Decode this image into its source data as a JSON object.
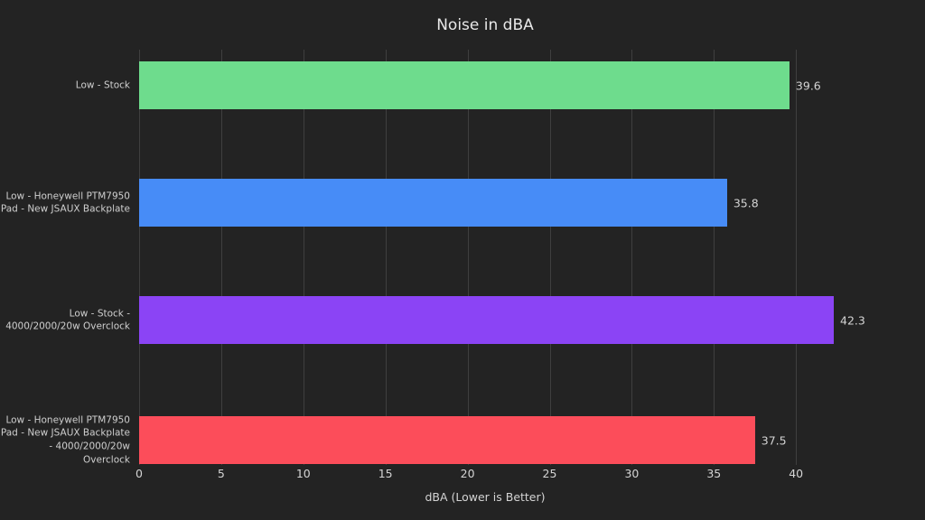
{
  "chart_data": {
    "type": "bar",
    "orientation": "horizontal",
    "title": "Noise in dBA",
    "xlabel": "dBA (Lower is Better)",
    "categories": [
      "Low - Stock",
      "Low - Honeywell PTM7950 Pad - New JSAUX Backplate",
      "Low - Stock - 4000/2000/20w Overclock",
      "Low - Honeywell PTM7950 Pad - New JSAUX Backplate - 4000/2000/20w Overclock"
    ],
    "values": [
      39.6,
      35.8,
      42.3,
      37.5
    ],
    "value_labels": [
      "39.6",
      "35.8",
      "42.3",
      "37.5"
    ],
    "bar_colors": [
      "#6edc8d",
      "#478cf7",
      "#8b44f5",
      "#fc4d5a"
    ],
    "xticks": [
      "0",
      "5",
      "10",
      "15",
      "20",
      "25",
      "30",
      "35",
      "40"
    ],
    "xtick_values": [
      0,
      5,
      10,
      15,
      20,
      25,
      30,
      35,
      40
    ],
    "xlim": [
      0,
      47.3
    ],
    "grid": true,
    "legend": false,
    "colors": {
      "background": "#232323",
      "gridline": "#3f3f3f",
      "title_text": "#e8e8e8",
      "label_text": "#cfcfcf",
      "tick_text": "#d4d4d4"
    }
  }
}
